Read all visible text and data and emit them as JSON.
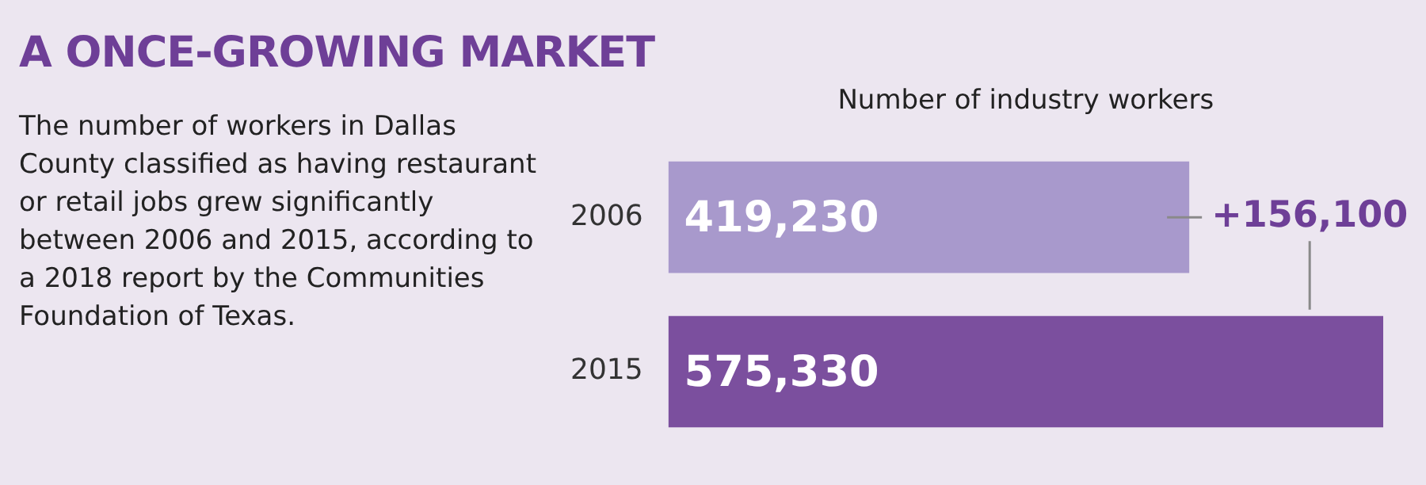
{
  "chart_data": {
    "type": "bar",
    "orientation": "horizontal",
    "title": "A ONCE-GROWING MARKET",
    "subtitle": "The number of workers in Dallas County classified as having restaurant or retail jobs grew significantly between 2006 and 2015, according to a 2018 report by the Communities Foundation of Texas.",
    "xlabel": "Number of industry workers",
    "categories": [
      "2006",
      "2015"
    ],
    "values": [
      419230,
      575330
    ],
    "colors": [
      "#a899cc",
      "#7b4f9e"
    ],
    "value_labels": [
      "419,230",
      "575,330"
    ],
    "annotations": [
      "+156,100"
    ],
    "grid": false,
    "legend": false
  }
}
